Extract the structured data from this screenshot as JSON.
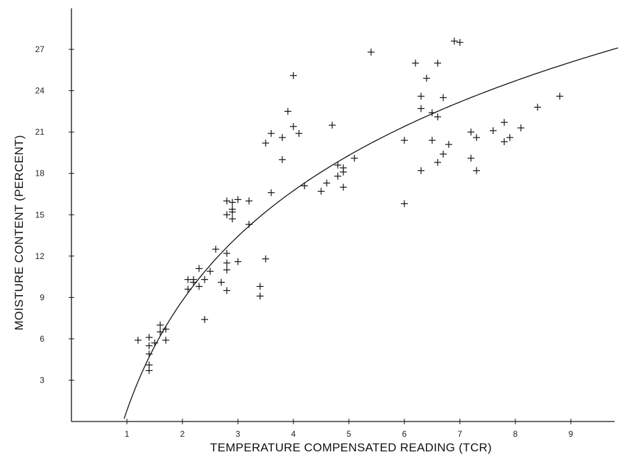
{
  "chart_data": {
    "type": "scatter",
    "title": "",
    "xlabel": "TEMPERATURE COMPENSATED READING (TCR)",
    "ylabel": "MOISTURE CONTENT (PERCENT)",
    "xlim": [
      0,
      10
    ],
    "ylim": [
      0,
      30
    ],
    "x_ticks": [
      1,
      2,
      3,
      4,
      5,
      6,
      7,
      8,
      9
    ],
    "x_tick_labels": [
      "1",
      "2",
      "3",
      "4",
      "5",
      "6",
      "7",
      "8",
      "9"
    ],
    "y_ticks": [
      3,
      6,
      9,
      12,
      15,
      18,
      21,
      24,
      27
    ],
    "y_tick_labels": [
      "3",
      "6",
      "9",
      "12",
      "15",
      "18",
      "21",
      "24",
      "27"
    ],
    "grid": false,
    "legend": "none",
    "series": [
      {
        "type": "scatter",
        "marker": "plus",
        "points": [
          [
            1.2,
            5.9
          ],
          [
            1.4,
            5.5
          ],
          [
            1.4,
            6.1
          ],
          [
            1.4,
            4.9
          ],
          [
            1.4,
            4.1
          ],
          [
            1.4,
            3.7
          ],
          [
            1.5,
            5.7
          ],
          [
            1.6,
            7.0
          ],
          [
            1.6,
            6.5
          ],
          [
            1.7,
            6.7
          ],
          [
            1.7,
            5.9
          ],
          [
            2.1,
            10.3
          ],
          [
            2.1,
            9.6
          ],
          [
            2.2,
            10.3
          ],
          [
            2.2,
            10.1
          ],
          [
            2.3,
            11.1
          ],
          [
            2.3,
            9.8
          ],
          [
            2.4,
            10.3
          ],
          [
            2.4,
            7.4
          ],
          [
            2.5,
            10.9
          ],
          [
            2.6,
            12.5
          ],
          [
            2.7,
            10.1
          ],
          [
            2.8,
            12.2
          ],
          [
            2.8,
            11.5
          ],
          [
            2.8,
            11.0
          ],
          [
            2.8,
            9.5
          ],
          [
            2.8,
            16.0
          ],
          [
            2.8,
            15.0
          ],
          [
            2.9,
            15.9
          ],
          [
            2.9,
            15.4
          ],
          [
            2.9,
            15.2
          ],
          [
            2.9,
            14.7
          ],
          [
            3.0,
            16.1
          ],
          [
            3.0,
            11.6
          ],
          [
            3.2,
            16.0
          ],
          [
            3.2,
            14.3
          ],
          [
            3.4,
            9.8
          ],
          [
            3.4,
            9.1
          ],
          [
            3.5,
            11.8
          ],
          [
            3.5,
            20.2
          ],
          [
            3.6,
            16.6
          ],
          [
            3.6,
            20.9
          ],
          [
            3.8,
            20.6
          ],
          [
            3.8,
            19.0
          ],
          [
            3.9,
            22.5
          ],
          [
            4.0,
            25.1
          ],
          [
            4.0,
            21.4
          ],
          [
            4.1,
            20.9
          ],
          [
            4.2,
            17.1
          ],
          [
            4.5,
            16.7
          ],
          [
            4.6,
            17.3
          ],
          [
            4.7,
            21.5
          ],
          [
            4.8,
            18.6
          ],
          [
            4.8,
            17.8
          ],
          [
            4.9,
            18.4
          ],
          [
            4.9,
            18.1
          ],
          [
            4.9,
            17.0
          ],
          [
            5.1,
            19.1
          ],
          [
            5.4,
            26.8
          ],
          [
            6.0,
            15.8
          ],
          [
            6.0,
            20.4
          ],
          [
            6.2,
            26.0
          ],
          [
            6.3,
            23.6
          ],
          [
            6.3,
            22.7
          ],
          [
            6.3,
            18.2
          ],
          [
            6.4,
            24.9
          ],
          [
            6.5,
            22.4
          ],
          [
            6.5,
            20.4
          ],
          [
            6.6,
            26.0
          ],
          [
            6.6,
            22.1
          ],
          [
            6.6,
            18.8
          ],
          [
            6.7,
            23.5
          ],
          [
            6.7,
            19.4
          ],
          [
            6.8,
            20.1
          ],
          [
            6.9,
            27.6
          ],
          [
            7.0,
            27.5
          ],
          [
            7.2,
            21.0
          ],
          [
            7.2,
            19.1
          ],
          [
            7.3,
            20.6
          ],
          [
            7.3,
            18.2
          ],
          [
            7.6,
            21.1
          ],
          [
            7.8,
            21.7
          ],
          [
            7.8,
            20.3
          ],
          [
            7.9,
            20.6
          ],
          [
            8.1,
            21.3
          ],
          [
            8.4,
            22.8
          ],
          [
            8.8,
            23.6
          ]
        ]
      },
      {
        "type": "line",
        "style": "fitted-curve",
        "x_start": 0.95,
        "x_end": 10.0,
        "equation": "y = 0.8 + 11.5 * ln(x)"
      }
    ]
  }
}
